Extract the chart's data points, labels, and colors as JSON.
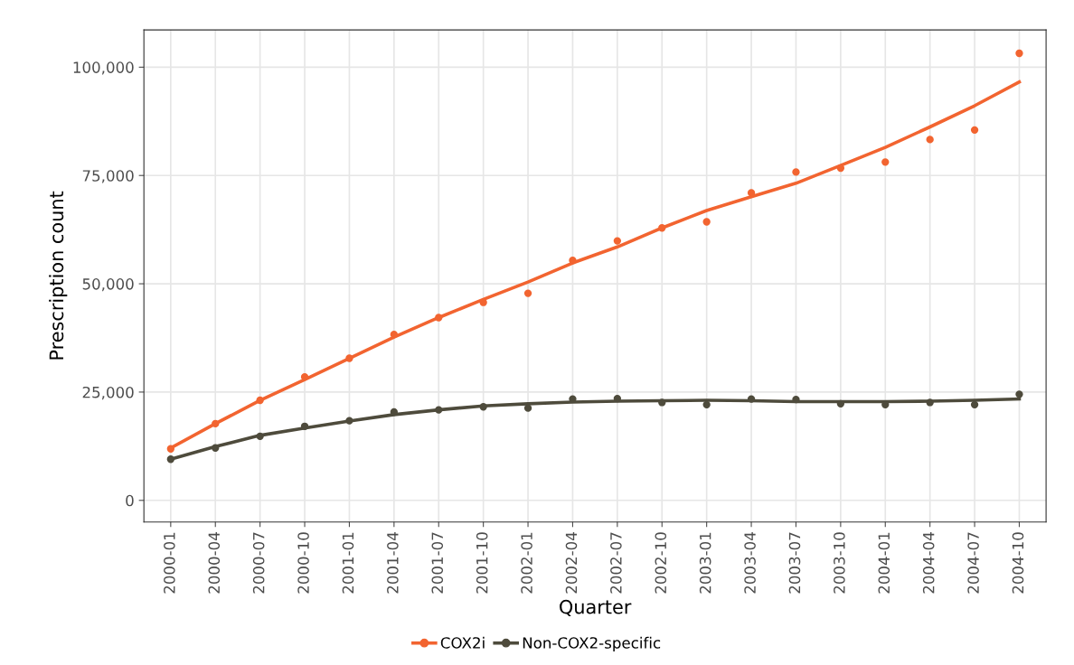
{
  "chart_data": {
    "type": "line",
    "xlabel": "Quarter",
    "ylabel": "Prescription count",
    "categories": [
      "2000-01",
      "2000-04",
      "2000-07",
      "2000-10",
      "2001-01",
      "2001-04",
      "2001-07",
      "2001-10",
      "2002-01",
      "2002-04",
      "2002-07",
      "2002-10",
      "2003-01",
      "2003-04",
      "2003-07",
      "2003-10",
      "2004-01",
      "2004-04",
      "2004-07",
      "2004-10"
    ],
    "series": [
      {
        "name": "COX2i",
        "type": "scatter",
        "color": "#f26430",
        "marker": "circle",
        "values": [
          11900,
          17700,
          23100,
          28500,
          32800,
          38300,
          42200,
          45700,
          47800,
          55400,
          59900,
          62900,
          64300,
          71000,
          75800,
          76700,
          78100,
          83300,
          85500,
          103200
        ]
      },
      {
        "name": "Non-COX2-specific",
        "type": "scatter",
        "color": "#4e4b3c",
        "marker": "circle",
        "values": [
          9500,
          12100,
          14800,
          17100,
          18400,
          20400,
          20900,
          21600,
          21300,
          23400,
          23500,
          22600,
          22100,
          23400,
          23300,
          22300,
          22100,
          22600,
          22100,
          24500
        ]
      },
      {
        "color": "#f26430",
        "marker": "none",
        "values": [
          12100,
          17700,
          23100,
          27900,
          32800,
          37700,
          42200,
          46400,
          50400,
          54800,
          58500,
          62900,
          66900,
          70100,
          73200,
          77300,
          81500,
          86200,
          91100,
          96600
        ]
      },
      {
        "color": "#4e4b3c",
        "marker": "none",
        "values": [
          9500,
          12400,
          15000,
          16700,
          18300,
          19800,
          20900,
          21800,
          22300,
          22700,
          22900,
          23000,
          23100,
          23000,
          22800,
          22800,
          22800,
          22900,
          23100,
          23400
        ]
      }
    ],
    "ylim": [
      -5000,
      108600
    ],
    "yticks": [
      0,
      {
        "value": 25000,
        "label": "25,000"
      },
      {
        "value": 50000,
        "label": "50,000"
      },
      {
        "value": 75000,
        "label": "75,000"
      },
      {
        "value": 100000,
        "label": "100,000"
      }
    ],
    "grid": true,
    "legend": "bottom",
    "line_style": "solid"
  }
}
